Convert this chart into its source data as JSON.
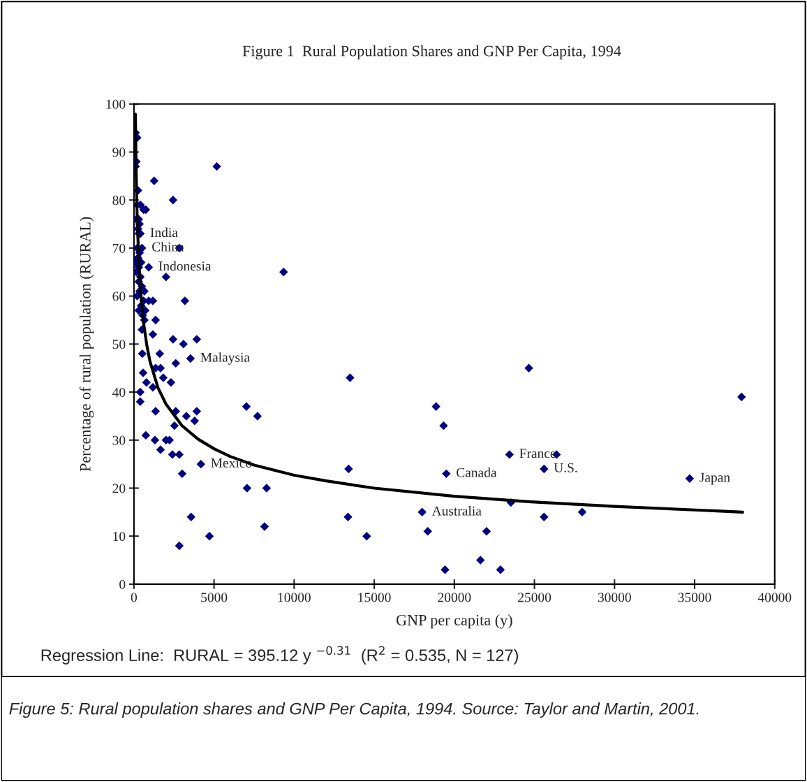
{
  "chart_data": {
    "type": "scatter",
    "title": "Figure 1  Rural Population Shares and GNP Per Capita, 1994",
    "xlabel": "GNP per capita (y)",
    "ylabel": "Percentage of rural population (RURAL)",
    "xlim": [
      0,
      40000
    ],
    "xticks": [
      0,
      5000,
      10000,
      15000,
      20000,
      25000,
      30000,
      35000,
      40000
    ],
    "ylim": [
      0,
      100
    ],
    "yticks": [
      0,
      10,
      20,
      30,
      40,
      50,
      60,
      70,
      80,
      90,
      100
    ],
    "grid": false,
    "series": [
      {
        "marker": "diamond",
        "color": "#000080",
        "x": [
          100,
          200,
          150,
          100,
          250,
          200,
          400,
          600,
          300,
          150,
          350,
          250,
          300,
          400,
          500,
          200,
          350,
          250,
          100,
          450,
          300,
          150,
          400,
          300,
          500,
          350,
          200,
          600,
          450,
          300,
          550,
          650,
          500,
          700,
          5170,
          1260,
          2440,
          740,
          2830,
          9340,
          920,
          2000,
          3180,
          1180,
          920,
          650,
          1350,
          1180,
          2440,
          3090,
          3920,
          3530,
          2610,
          1610,
          520,
          1660,
          1350,
          570,
          1830,
          2310,
          780,
          1180,
          390,
          390,
          1350,
          7020,
          7710,
          2610,
          3920,
          3270,
          3790,
          2530,
          740,
          1310,
          2000,
          2220,
          1660,
          2400,
          2830,
          4180,
          3010,
          7060,
          8280,
          3570,
          8150,
          4710,
          2830,
          13490,
          24650,
          37930,
          18860,
          19330,
          23440,
          26380,
          25600,
          13400,
          19500,
          34690,
          23530,
          17990,
          27980,
          25600,
          13360,
          14530,
          18340,
          22010,
          21630,
          19420,
          22880
        ],
        "values": [
          94,
          93,
          88,
          87,
          82,
          79,
          79,
          78,
          76,
          76,
          75,
          74,
          73,
          73,
          70,
          70,
          69,
          68,
          67,
          67,
          66,
          65,
          64,
          63,
          62,
          61,
          60,
          59,
          58,
          57,
          56,
          55,
          53,
          57,
          87,
          84,
          80,
          78,
          70,
          65,
          66,
          64,
          59,
          59,
          59,
          61,
          55,
          52,
          51,
          50,
          51,
          47,
          46,
          48,
          48,
          45,
          45,
          44,
          43,
          42,
          42,
          41,
          40,
          38,
          36,
          37,
          35,
          36,
          36,
          35,
          34,
          33,
          31,
          30,
          30,
          30,
          28,
          27,
          27,
          25,
          23,
          20,
          20,
          14,
          12,
          10,
          8,
          43,
          45,
          39,
          37,
          33,
          27,
          27,
          24,
          24,
          23,
          22,
          17,
          15,
          15,
          14,
          14,
          10,
          11,
          11,
          5,
          3,
          3
        ]
      },
      {
        "type": "line",
        "color": "#000000",
        "x": [
          90,
          120,
          150,
          200,
          300,
          400,
          600,
          800,
          1000,
          1500,
          2000,
          3000,
          4000,
          5000,
          6000,
          7500,
          10000,
          12000,
          15000,
          20000,
          25000,
          30000,
          38000
        ],
        "values": [
          97.9,
          89.6,
          83.5,
          76.5,
          67.4,
          61.7,
          54.4,
          49.8,
          46.4,
          40.9,
          37.5,
          33.0,
          30.2,
          28.2,
          26.6,
          24.8,
          22.7,
          21.5,
          20.0,
          18.3,
          17.1,
          16.2,
          15.0
        ]
      }
    ],
    "annotations": [
      {
        "text": "India",
        "x": 400,
        "y": 73
      },
      {
        "text": "China",
        "x": 500,
        "y": 70
      },
      {
        "text": "Indonesia",
        "x": 920,
        "y": 66
      },
      {
        "text": "Malaysia",
        "x": 3530,
        "y": 47
      },
      {
        "text": "Mexico",
        "x": 4180,
        "y": 25
      },
      {
        "text": "Canada",
        "x": 19500,
        "y": 23
      },
      {
        "text": "France",
        "x": 23440,
        "y": 27
      },
      {
        "text": "U.S.",
        "x": 25600,
        "y": 24
      },
      {
        "text": "Japan",
        "x": 34690,
        "y": 22
      },
      {
        "text": "Australia",
        "x": 17990,
        "y": 15
      },
      "Regression Line:  RURAL = 395.12 y $^{−0.31}$  (R$^{2}$ = 0.535, N = 127)",
      "Figure 5: Rural population shares and GNP Per Capita, 1994. Source: Taylor and Martin, 2001."
    ]
  }
}
